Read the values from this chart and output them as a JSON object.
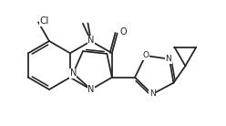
{
  "bg": "#ffffff",
  "lc": "#222222",
  "lw": 1.25,
  "fs": 7.0,
  "figsize": [
    2.48,
    1.38
  ],
  "dpi": 100,
  "xlim": [
    0,
    2.48
  ],
  "ylim": [
    0,
    1.38
  ]
}
